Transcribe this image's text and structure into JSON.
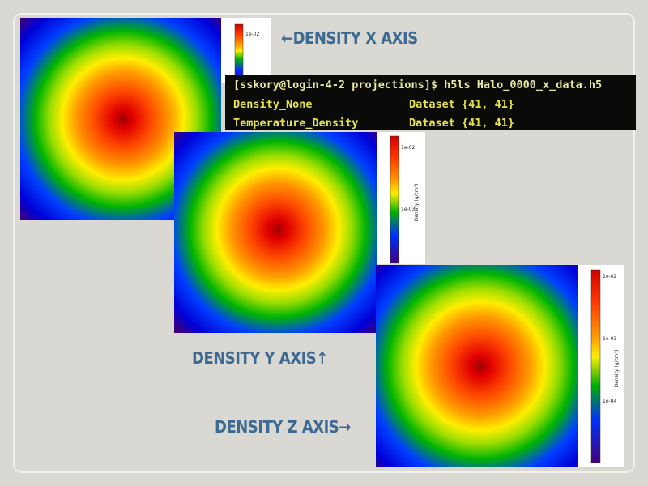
{
  "slide": {
    "labels": [
      "←DENSITY X AXIS",
      "DENSITY Y AXIS↑",
      "DENSITY Z AXIS→"
    ],
    "terminal": {
      "command": "[sskory@login-4-2 projections]$ h5ls Halo_0000_x_data.h5",
      "rows": [
        [
          "Density_None",
          "Dataset {41, 41}"
        ],
        [
          "Temperature_Density",
          "Dataset {41, 41}"
        ]
      ]
    },
    "colorbars": [
      {
        "ticks": [
          "1e-02"
        ]
      },
      {
        "ticks": [
          "1e-02",
          "1e-03"
        ],
        "label": "Density (g/cm³)"
      },
      {
        "ticks": [
          "1e-02",
          "1e-03",
          "1e-04"
        ],
        "label": "Density (g/cm³)"
      }
    ]
  }
}
